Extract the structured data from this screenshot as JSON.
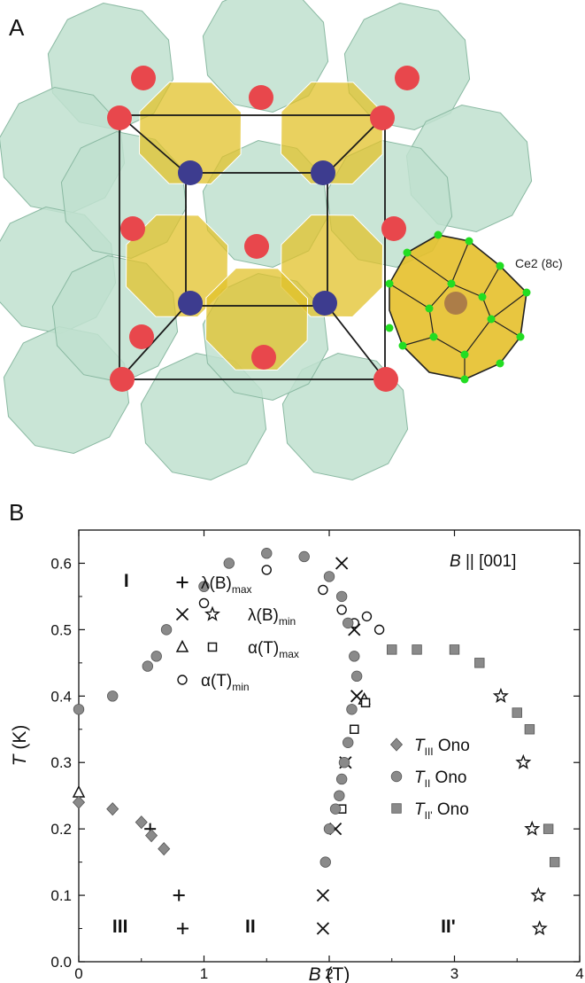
{
  "panel_a": {
    "letter": "A",
    "ce_label": "Ce2 (8c)",
    "colors": {
      "cage": "#bfe0cf",
      "cage_edge": "#8ab9a2",
      "yellow_poly": "#e2c22a",
      "red_atom": "#e8474c",
      "blue_atom": "#3d3c8f",
      "green_atom": "#22dd22"
    }
  },
  "chart_data": {
    "type": "scatter",
    "panel_letter": "B",
    "xlabel": {
      "var": "B",
      "unit": " (T)"
    },
    "ylabel": {
      "var": "T",
      "unit": " (K)"
    },
    "xlim": [
      0,
      4
    ],
    "ylim": [
      0,
      0.65
    ],
    "xticks": [
      "0",
      "1",
      "2",
      "3",
      "4"
    ],
    "yticks": [
      "0.0",
      "0.1",
      "0.2",
      "0.3",
      "0.4",
      "0.5",
      "0.6"
    ],
    "annotation": {
      "var": "B",
      "text": " || [001]"
    },
    "regions": [
      {
        "label": "I",
        "x": 0.38,
        "y": 0.575
      },
      {
        "label": "III",
        "x": 0.33,
        "y": 0.055
      },
      {
        "label": "II",
        "x": 1.37,
        "y": 0.055
      },
      {
        "label": "II'",
        "x": 2.95,
        "y": 0.055
      }
    ],
    "legend": [
      {
        "marker": "plus",
        "var": "λ(B)",
        "sub": "max"
      },
      {
        "marker": "cross",
        "marker2": "star",
        "var": "λ(B)",
        "sub": "min"
      },
      {
        "marker": "triangle",
        "marker2": "square",
        "var": "α(T)",
        "sub": "max"
      },
      {
        "marker": "circle",
        "var": "α(T)",
        "sub": "min"
      },
      {
        "marker": "diamond",
        "var": "T",
        "sub": "III",
        "suffix": " Ono"
      },
      {
        "marker": "filled_circle",
        "var": "T",
        "sub": "II",
        "suffix": " Ono"
      },
      {
        "marker": "filled_square",
        "var": "T",
        "sub": "II'",
        "suffix": " Ono"
      }
    ],
    "series": [
      {
        "name": "λ(B)max",
        "marker": "plus",
        "x": [
          0.57,
          0.8,
          0.83
        ],
        "y": [
          0.2,
          0.1,
          0.05
        ]
      },
      {
        "name": "λ(B)min",
        "marker": "cross",
        "x": [
          2.1,
          2.2,
          2.22,
          2.13,
          2.05,
          1.95,
          1.95
        ],
        "y": [
          0.6,
          0.5,
          0.4,
          0.3,
          0.2,
          0.1,
          0.05
        ]
      },
      {
        "name": "λ(B)min",
        "marker": "star",
        "x": [
          3.37,
          3.55,
          3.62,
          3.67,
          3.68
        ],
        "y": [
          0.4,
          0.3,
          0.2,
          0.1,
          0.05
        ]
      },
      {
        "name": "α(T)max",
        "marker": "triangle",
        "x": [
          0.0,
          2.28
        ],
        "y": [
          0.255,
          0.395
        ]
      },
      {
        "name": "α(T)max",
        "marker": "square",
        "x": [
          2.29,
          2.2,
          2.1
        ],
        "y": [
          0.39,
          0.35,
          0.23
        ]
      },
      {
        "name": "α(T)min",
        "marker": "circle",
        "x": [
          1.0,
          1.5,
          1.95,
          2.1,
          2.3,
          2.4,
          2.2
        ],
        "y": [
          0.54,
          0.59,
          0.56,
          0.53,
          0.52,
          0.5,
          0.51
        ]
      },
      {
        "name": "TIII Ono",
        "marker": "diamond",
        "x": [
          0.0,
          0.27,
          0.5,
          0.58,
          0.68
        ],
        "y": [
          0.24,
          0.23,
          0.21,
          0.19,
          0.17
        ]
      },
      {
        "name": "TII Ono",
        "marker": "filled_circle",
        "x": [
          0.0,
          0.27,
          0.55,
          0.62,
          0.7,
          1.0,
          1.2,
          1.5,
          1.8,
          2.0,
          2.1,
          2.15,
          2.2,
          2.22,
          2.18,
          2.15,
          2.12,
          2.1,
          2.08,
          2.05,
          2.0,
          1.97
        ],
        "y": [
          0.38,
          0.4,
          0.445,
          0.46,
          0.5,
          0.565,
          0.6,
          0.615,
          0.61,
          0.58,
          0.55,
          0.51,
          0.46,
          0.43,
          0.38,
          0.33,
          0.3,
          0.275,
          0.25,
          0.23,
          0.2,
          0.15
        ]
      },
      {
        "name": "TII' Ono",
        "marker": "filled_square",
        "x": [
          2.5,
          2.7,
          3.0,
          3.2,
          3.5,
          3.6,
          3.75,
          3.8
        ],
        "y": [
          0.47,
          0.47,
          0.47,
          0.45,
          0.375,
          0.35,
          0.2,
          0.15
        ]
      }
    ]
  }
}
